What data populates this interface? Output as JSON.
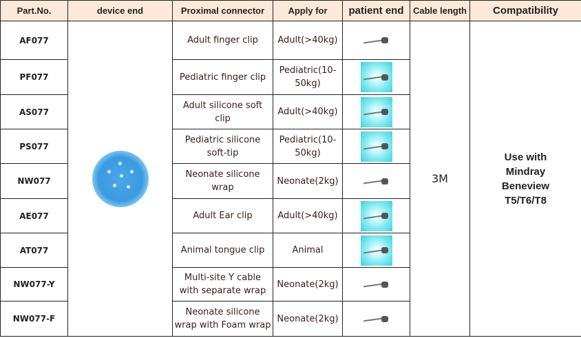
{
  "headers": {
    "part": "Part.No.",
    "device": "device end",
    "proximal": "Proximal connector",
    "apply": "Apply for",
    "patient": "patient end",
    "cable": "Cable length",
    "compat": "Compatibility"
  },
  "rows": [
    {
      "part": "AF077",
      "proximal": "Adult finger clip",
      "apply": "Adult(>40kg)",
      "image": "adult-finger-clip-sensors"
    },
    {
      "part": "PF077",
      "proximal": "Pediatric finger clip",
      "apply": "Pediatric(10-50kg)",
      "image": "pediatric-finger-clip"
    },
    {
      "part": "AS077",
      "proximal": "Adult silicone soft clip",
      "apply": "Adult(>40kg)",
      "image": "adult-silicone-clip"
    },
    {
      "part": "PS077",
      "proximal": "Pediatric silicone soft-tip",
      "apply": "Pediatric(10-50kg)",
      "image": "pediatric-silicone-tip"
    },
    {
      "part": "NW077",
      "proximal": "Neonate silicone wrap",
      "apply": "Neonate(2kg)",
      "image": "neonate-wrap"
    },
    {
      "part": "AE077",
      "proximal": "Adult Ear clip",
      "apply": "Adult(>40kg)",
      "image": "adult-ear-clip"
    },
    {
      "part": "AT077",
      "proximal": "Animal tongue clip",
      "apply": "Animal",
      "image": "animal-tongue-clip"
    },
    {
      "part": "NW077-Y",
      "proximal": "Multi-site Y cable with separate wrap",
      "apply": "Neonate(2kg)",
      "image": "y-cable-wrap"
    },
    {
      "part": "NW077-F",
      "proximal": "Neonate silicone wrap with Foam wrap",
      "apply": "Neonate(2kg)",
      "image": "foam-wrap"
    }
  ],
  "cable_length": "3M",
  "compatibility": "Use with Mindray Beneview T5/T6/T8",
  "colors": {
    "header_bg": "#fde9d9",
    "connector_blue": "#3b9be0",
    "image_cyan": "#7fe8f0"
  }
}
